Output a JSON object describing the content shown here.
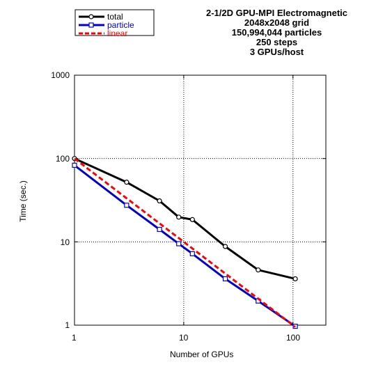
{
  "chart_data": {
    "type": "line",
    "title_lines": [
      "2-1/2D GPU-MPI Electromagnetic",
      "2048x2048 grid",
      "150,994,044 particles",
      "250 steps",
      "3 GPUs/host"
    ],
    "xlabel": "Number of GPUs",
    "ylabel": "Time (sec.)",
    "xscale": "log",
    "yscale": "log",
    "xlim": [
      1,
      200
    ],
    "ylim": [
      1,
      1000
    ],
    "x_ticks": [
      "1",
      "10",
      "100"
    ],
    "y_ticks": [
      "1000",
      "100",
      "10",
      "1"
    ],
    "grid": true,
    "legend_position": "top-left (outside plot)",
    "series": [
      {
        "name": "total",
        "color": "#000000",
        "marker": "circle",
        "dashed": false,
        "x": [
          1,
          3,
          6,
          9,
          12,
          24,
          48,
          105
        ],
        "y": [
          100,
          52,
          31,
          19.8,
          18.5,
          8.8,
          4.6,
          3.6
        ]
      },
      {
        "name": "particle",
        "color": "#0000cc",
        "marker": "square",
        "dashed": false,
        "x": [
          1,
          3,
          6,
          9,
          12,
          24,
          48,
          105
        ],
        "y": [
          83,
          27.5,
          14.1,
          9.5,
          7.2,
          3.6,
          1.95,
          0.97
        ]
      },
      {
        "name": "linear",
        "color": "#ff0000",
        "marker": "none",
        "dashed": true,
        "x": [
          1,
          105
        ],
        "y": [
          100,
          0.952
        ]
      }
    ]
  }
}
